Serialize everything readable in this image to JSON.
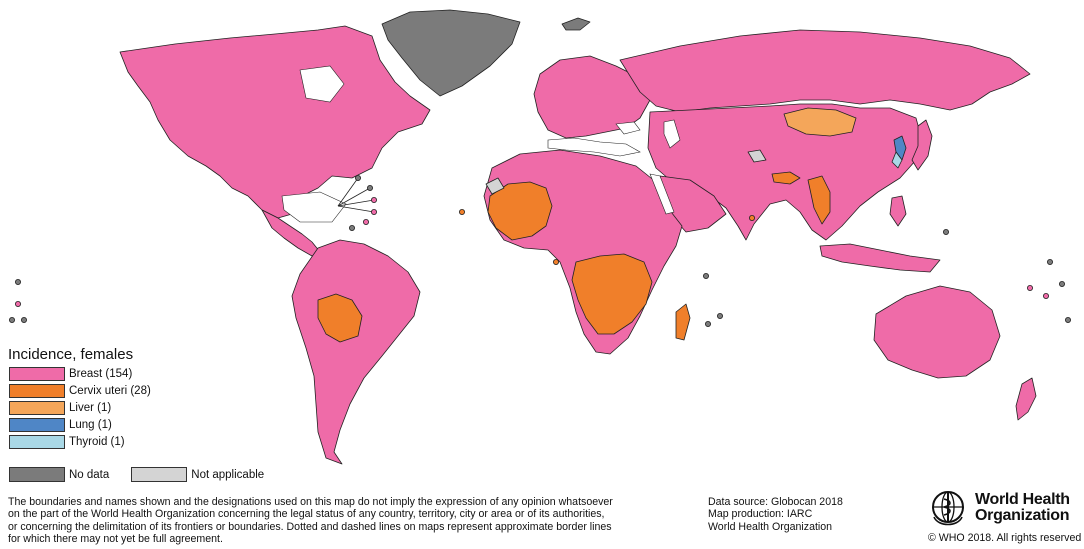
{
  "colors": {
    "breast": "#ef6ba8",
    "cervix_uteri": "#f07f2a",
    "liver": "#f4a65a",
    "lung": "#4f86c6",
    "thyroid": "#a9d8e6",
    "no_data": "#7b7b7b",
    "not_applicable": "#d4d4d4",
    "border": "#222222",
    "water": "#ffffff"
  },
  "legend": {
    "title": "Incidence, females",
    "items": [
      {
        "label": "Breast (154)",
        "color": "#ef6ba8"
      },
      {
        "label": "Cervix uteri (28)",
        "color": "#f07f2a"
      },
      {
        "label": "Liver (1)",
        "color": "#f4a65a"
      },
      {
        "label": "Lung (1)",
        "color": "#4f86c6"
      },
      {
        "label": "Thyroid (1)",
        "color": "#a9d8e6"
      }
    ],
    "no_data_label": "No data",
    "not_applicable_label": "Not applicable"
  },
  "disclaimer": {
    "lines": [
      "The boundaries and names shown and the designations used on this map do not imply the expression of any opinion whatsoever",
      "on the part of the World Health Organization concerning the legal status of any country, territory, city or area or of its authorities,",
      "or concerning the delimitation of its frontiers or boundaries. Dotted and dashed lines on maps represent approximate border lines",
      "for which there may not yet be full agreement."
    ]
  },
  "source": {
    "data_source": "Data source: Globocan 2018",
    "map_production": "Map production: IARC",
    "organization": "World Health Organization"
  },
  "who": {
    "name_line1": "World Health",
    "name_line2": "Organization",
    "copyright": "© WHO 2018. All rights reserved"
  }
}
